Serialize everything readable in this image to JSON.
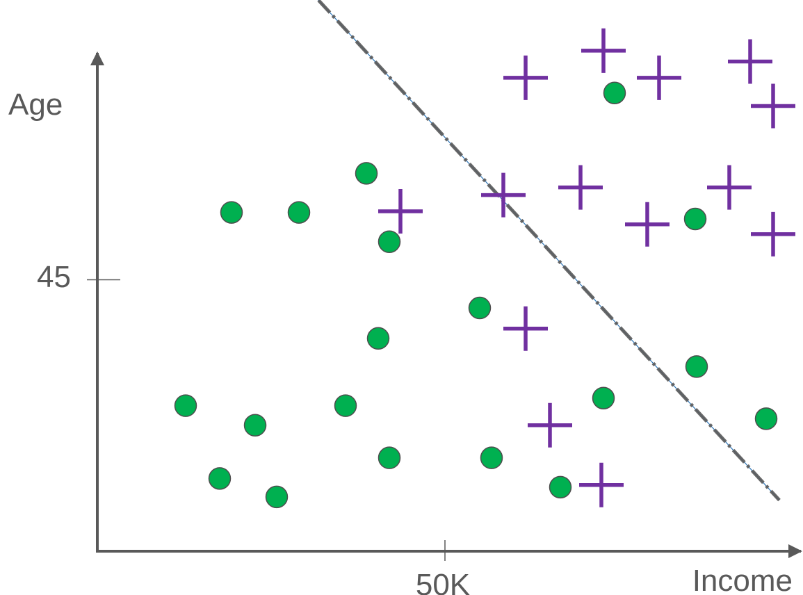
{
  "chart_data": {
    "type": "scatter",
    "xlabel": "Income",
    "ylabel": "Age",
    "xlim": [
      0,
      100
    ],
    "ylim": [
      20,
      65
    ],
    "ticks": {
      "x": [
        {
          "value": 50,
          "label": "50K"
        }
      ],
      "y": [
        {
          "value": 45,
          "label": "45"
        }
      ]
    },
    "grid": false,
    "legend": "none",
    "colors": {
      "circle_fill": "#00b050",
      "circle_stroke": "#4d4d4d",
      "plus": "#7030a0",
      "axis": "#595959",
      "boundary": "#595959",
      "boundary_inner": "#2e75b6"
    },
    "series": [
      {
        "marker": "circle",
        "points": [
          [
            12.7,
            33.4
          ],
          [
            17.6,
            26.7
          ],
          [
            19.3,
            51.2
          ],
          [
            22.7,
            31.6
          ],
          [
            25.8,
            25.0
          ],
          [
            29.0,
            51.2
          ],
          [
            35.7,
            33.4
          ],
          [
            38.7,
            54.8
          ],
          [
            40.4,
            39.6
          ],
          [
            42.0,
            48.5
          ],
          [
            42.0,
            28.6
          ],
          [
            55.0,
            42.4
          ],
          [
            56.7,
            28.6
          ],
          [
            66.6,
            25.9
          ],
          [
            72.8,
            34.1
          ],
          [
            74.4,
            62.2
          ],
          [
            86.0,
            50.6
          ],
          [
            86.2,
            37.0
          ],
          [
            96.2,
            32.2
          ]
        ]
      },
      {
        "marker": "plus",
        "points": [
          [
            43.6,
            51.3
          ],
          [
            58.4,
            52.8
          ],
          [
            61.6,
            63.6
          ],
          [
            61.6,
            40.5
          ],
          [
            65.1,
            31.6
          ],
          [
            69.5,
            53.5
          ],
          [
            72.5,
            26.1
          ],
          [
            72.8,
            66.1
          ],
          [
            79.1,
            50.1
          ],
          [
            80.8,
            63.6
          ],
          [
            90.9,
            53.5
          ],
          [
            93.9,
            65.1
          ],
          [
            97.2,
            61.0
          ],
          [
            97.2,
            49.2
          ]
        ]
      }
    ],
    "decision_boundary": {
      "style": "dashed",
      "points": [
        [
          26.4,
          74.5
        ],
        [
          98.1,
          24.7
        ]
      ]
    }
  }
}
